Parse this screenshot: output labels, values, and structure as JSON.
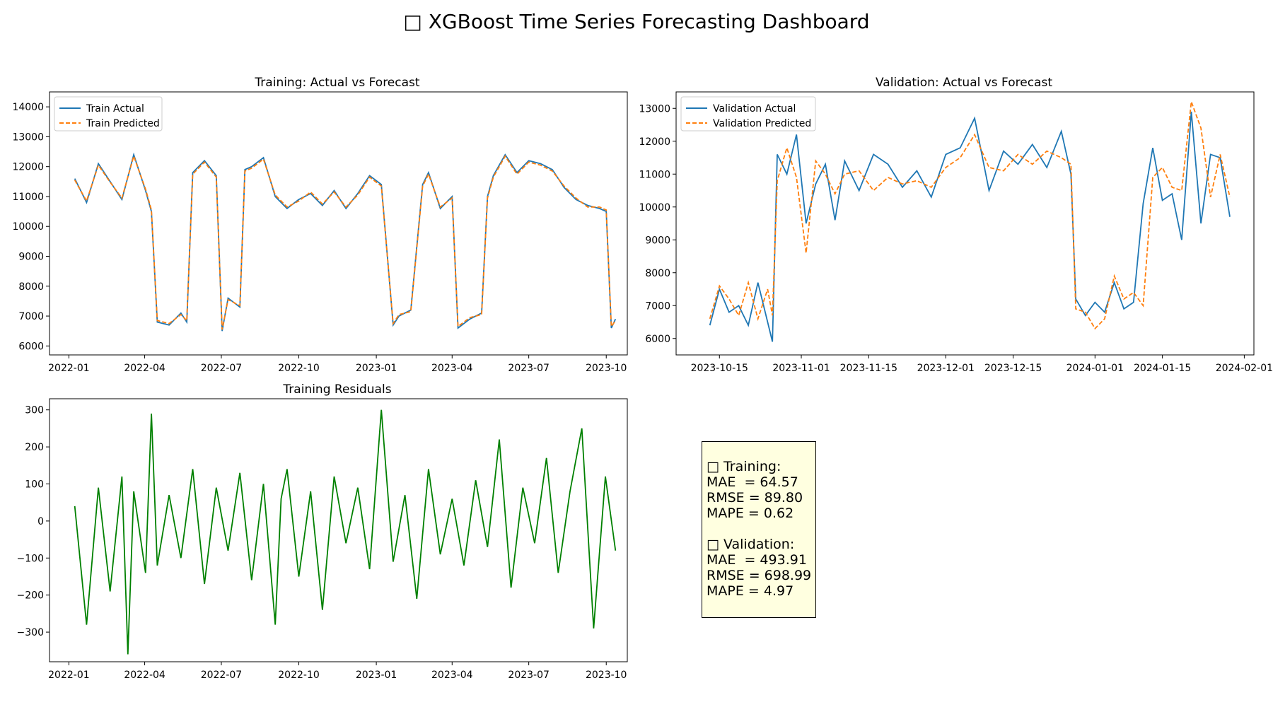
{
  "dashboard": {
    "title": "□ XGBoost Time Series Forecasting Dashboard"
  },
  "metrics": {
    "training_header": "□ Training:",
    "training_mae": "MAE  = 64.57",
    "training_rmse": "RMSE = 89.80",
    "training_mape": "MAPE = 0.62",
    "validation_header": "□ Validation:",
    "validation_mae": "MAE  = 493.91",
    "validation_rmse": "RMSE = 698.99",
    "validation_mape": "MAPE = 4.97"
  },
  "colors": {
    "actual": "#1f77b4",
    "predicted": "#ff7f0e",
    "residual": "#008000",
    "metrics_bg": "#ffffe0"
  },
  "chart_data": [
    {
      "id": "training",
      "type": "line",
      "title": "Training: Actual vs Forecast",
      "legend_position": "top-left",
      "x_type": "date",
      "xlim": [
        "2021-12-09",
        "2023-10-26"
      ],
      "ylim": [
        5700,
        14500
      ],
      "x_ticks": [
        "2022-01",
        "2022-04",
        "2022-07",
        "2022-10",
        "2023-01",
        "2023-04",
        "2023-07",
        "2023-10"
      ],
      "x_tick_dates": [
        "2022-01-01",
        "2022-04-01",
        "2022-07-01",
        "2022-10-01",
        "2023-01-01",
        "2023-04-01",
        "2023-07-01",
        "2023-10-01"
      ],
      "y_ticks": [
        6000,
        7000,
        8000,
        9000,
        10000,
        11000,
        12000,
        13000,
        14000
      ],
      "series": [
        {
          "name": "Train Actual",
          "style": "solid",
          "x": [
            "2022-01-08",
            "2022-01-22",
            "2022-02-05",
            "2022-02-19",
            "2022-03-05",
            "2022-03-19",
            "2022-04-02",
            "2022-04-09",
            "2022-04-16",
            "2022-04-30",
            "2022-05-14",
            "2022-05-21",
            "2022-05-28",
            "2022-06-11",
            "2022-06-25",
            "2022-07-02",
            "2022-07-09",
            "2022-07-23",
            "2022-07-29",
            "2022-08-06",
            "2022-08-20",
            "2022-09-03",
            "2022-09-17",
            "2022-10-01",
            "2022-10-15",
            "2022-10-29",
            "2022-11-12",
            "2022-11-26",
            "2022-12-10",
            "2022-12-24",
            "2023-01-07",
            "2023-01-21",
            "2023-01-28",
            "2023-02-11",
            "2023-02-25",
            "2023-03-04",
            "2023-03-18",
            "2023-04-01",
            "2023-04-08",
            "2023-04-22",
            "2023-05-06",
            "2023-05-13",
            "2023-05-20",
            "2023-06-03",
            "2023-06-17",
            "2023-07-01",
            "2023-07-15",
            "2023-07-29",
            "2023-08-12",
            "2023-08-26",
            "2023-09-09",
            "2023-09-23",
            "2023-10-01",
            "2023-10-07",
            "2023-10-12"
          ],
          "y": [
            11600,
            10800,
            12100,
            11500,
            10900,
            12400,
            11200,
            10500,
            6800,
            6700,
            7100,
            6800,
            11800,
            12200,
            11700,
            6500,
            7600,
            7300,
            11900,
            12000,
            12300,
            11000,
            10600,
            10900,
            11100,
            10700,
            11200,
            10600,
            11100,
            11700,
            11400,
            6700,
            7000,
            7200,
            11400,
            11800,
            10600,
            11000,
            6600,
            6900,
            7100,
            11000,
            11700,
            12400,
            11800,
            12200,
            12100,
            11900,
            11300,
            10900,
            10700,
            10600,
            10500,
            6600,
            6900
          ]
        },
        {
          "name": "Train Predicted",
          "style": "dashed",
          "x": [
            "2022-01-08",
            "2022-01-22",
            "2022-02-05",
            "2022-02-19",
            "2022-03-05",
            "2022-03-19",
            "2022-04-02",
            "2022-04-09",
            "2022-04-16",
            "2022-04-30",
            "2022-05-14",
            "2022-05-21",
            "2022-05-28",
            "2022-06-11",
            "2022-06-25",
            "2022-07-02",
            "2022-07-09",
            "2022-07-23",
            "2022-07-29",
            "2022-08-06",
            "2022-08-20",
            "2022-09-03",
            "2022-09-17",
            "2022-10-01",
            "2022-10-15",
            "2022-10-29",
            "2022-11-12",
            "2022-11-26",
            "2022-12-10",
            "2022-12-24",
            "2023-01-07",
            "2023-01-21",
            "2023-01-28",
            "2023-02-11",
            "2023-02-25",
            "2023-03-04",
            "2023-03-18",
            "2023-04-01",
            "2023-04-08",
            "2023-04-22",
            "2023-05-06",
            "2023-05-13",
            "2023-05-20",
            "2023-06-03",
            "2023-06-17",
            "2023-07-01",
            "2023-07-15",
            "2023-07-29",
            "2023-08-12",
            "2023-08-26",
            "2023-09-09",
            "2023-09-23",
            "2023-10-01",
            "2023-10-07",
            "2023-10-12"
          ],
          "y": [
            11550,
            10850,
            12050,
            11480,
            10950,
            12350,
            11250,
            10550,
            6850,
            6750,
            7050,
            6850,
            11750,
            12150,
            11650,
            6550,
            7550,
            7350,
            11850,
            11950,
            12250,
            11050,
            10650,
            10850,
            11150,
            10750,
            11150,
            10650,
            11050,
            11650,
            11350,
            6750,
            7050,
            7150,
            11350,
            11750,
            10650,
            10950,
            6650,
            6950,
            7050,
            10950,
            11650,
            12350,
            11750,
            12150,
            12050,
            11850,
            11350,
            10950,
            10650,
            10650,
            10550,
            6650,
            6850
          ]
        }
      ]
    },
    {
      "id": "validation",
      "type": "line",
      "title": "Validation: Actual vs Forecast",
      "legend_position": "top-left",
      "x_type": "date",
      "xlim": [
        "2023-10-06",
        "2024-02-03"
      ],
      "ylim": [
        5500,
        13500
      ],
      "x_ticks": [
        "2023-10-15",
        "2023-11-01",
        "2023-11-15",
        "2023-12-01",
        "2023-12-15",
        "2024-01-01",
        "2024-01-15",
        "2024-02-01"
      ],
      "x_tick_dates": [
        "2023-10-15",
        "2023-11-01",
        "2023-11-15",
        "2023-12-01",
        "2023-12-15",
        "2024-01-01",
        "2024-01-15",
        "2024-02-01"
      ],
      "y_ticks": [
        6000,
        7000,
        8000,
        9000,
        10000,
        11000,
        12000,
        13000
      ],
      "series": [
        {
          "name": "Validation Actual",
          "style": "solid",
          "x": [
            "2023-10-13",
            "2023-10-15",
            "2023-10-17",
            "2023-10-19",
            "2023-10-21",
            "2023-10-23",
            "2023-10-25",
            "2023-10-26",
            "2023-10-27",
            "2023-10-29",
            "2023-10-31",
            "2023-11-02",
            "2023-11-04",
            "2023-11-06",
            "2023-11-08",
            "2023-11-10",
            "2023-11-13",
            "2023-11-16",
            "2023-11-19",
            "2023-11-22",
            "2023-11-25",
            "2023-11-28",
            "2023-12-01",
            "2023-12-04",
            "2023-12-07",
            "2023-12-10",
            "2023-12-13",
            "2023-12-16",
            "2023-12-19",
            "2023-12-22",
            "2023-12-25",
            "2023-12-27",
            "2023-12-28",
            "2023-12-30",
            "2024-01-01",
            "2024-01-03",
            "2024-01-05",
            "2024-01-07",
            "2024-01-09",
            "2024-01-11",
            "2024-01-13",
            "2024-01-15",
            "2024-01-17",
            "2024-01-19",
            "2024-01-21",
            "2024-01-23",
            "2024-01-25",
            "2024-01-27",
            "2024-01-29"
          ],
          "y": [
            6400,
            7500,
            6800,
            7000,
            6400,
            7700,
            6500,
            5900,
            11600,
            11000,
            12200,
            9500,
            10700,
            11300,
            9600,
            11400,
            10500,
            11600,
            11300,
            10600,
            11100,
            10300,
            11600,
            11800,
            12700,
            10500,
            11700,
            11300,
            11900,
            11200,
            12300,
            11000,
            7200,
            6700,
            7100,
            6800,
            7700,
            6900,
            7100,
            10100,
            11800,
            10200,
            10400,
            9000,
            12900,
            9500,
            11600,
            11500,
            9700
          ]
        },
        {
          "name": "Validation Predicted",
          "style": "dashed",
          "x": [
            "2023-10-13",
            "2023-10-15",
            "2023-10-17",
            "2023-10-19",
            "2023-10-21",
            "2023-10-23",
            "2023-10-25",
            "2023-10-26",
            "2023-10-27",
            "2023-10-29",
            "2023-10-31",
            "2023-11-02",
            "2023-11-04",
            "2023-11-06",
            "2023-11-08",
            "2023-11-10",
            "2023-11-13",
            "2023-11-16",
            "2023-11-19",
            "2023-11-22",
            "2023-11-25",
            "2023-11-28",
            "2023-12-01",
            "2023-12-04",
            "2023-12-07",
            "2023-12-10",
            "2023-12-13",
            "2023-12-16",
            "2023-12-19",
            "2023-12-22",
            "2023-12-25",
            "2023-12-27",
            "2023-12-28",
            "2023-12-30",
            "2024-01-01",
            "2024-01-03",
            "2024-01-05",
            "2024-01-07",
            "2024-01-09",
            "2024-01-11",
            "2024-01-13",
            "2024-01-15",
            "2024-01-17",
            "2024-01-19",
            "2024-01-21",
            "2024-01-23",
            "2024-01-25",
            "2024-01-27",
            "2024-01-29"
          ],
          "y": [
            6600,
            7600,
            7200,
            6700,
            7700,
            6600,
            7500,
            6700,
            10800,
            11800,
            10900,
            8600,
            11400,
            11000,
            10400,
            11000,
            11100,
            10500,
            10900,
            10700,
            10800,
            10600,
            11200,
            11500,
            12200,
            11200,
            11100,
            11600,
            11300,
            11700,
            11500,
            11300,
            6900,
            6800,
            6300,
            6600,
            7900,
            7200,
            7400,
            7000,
            10900,
            11200,
            10600,
            10500,
            13200,
            12400,
            10300,
            11600,
            10300
          ]
        }
      ]
    },
    {
      "id": "residuals",
      "type": "line",
      "title": "Training Residuals",
      "x_type": "date",
      "xlim": [
        "2021-12-09",
        "2023-10-26"
      ],
      "ylim": [
        -380,
        330
      ],
      "x_ticks": [
        "2022-01",
        "2022-04",
        "2022-07",
        "2022-10",
        "2023-01",
        "2023-04",
        "2023-07",
        "2023-10"
      ],
      "x_tick_dates": [
        "2022-01-01",
        "2022-04-01",
        "2022-07-01",
        "2022-10-01",
        "2023-01-01",
        "2023-04-01",
        "2023-07-01",
        "2023-10-01"
      ],
      "y_ticks": [
        -300,
        -200,
        -100,
        0,
        100,
        200,
        300
      ],
      "series": [
        {
          "name": "",
          "style": "solid",
          "x": [
            "2022-01-08",
            "2022-01-22",
            "2022-02-05",
            "2022-02-19",
            "2022-03-05",
            "2022-03-12",
            "2022-03-19",
            "2022-04-02",
            "2022-04-09",
            "2022-04-16",
            "2022-04-30",
            "2022-05-14",
            "2022-05-28",
            "2022-06-11",
            "2022-06-25",
            "2022-07-09",
            "2022-07-23",
            "2022-08-06",
            "2022-08-20",
            "2022-09-03",
            "2022-09-10",
            "2022-09-17",
            "2022-10-01",
            "2022-10-15",
            "2022-10-29",
            "2022-11-12",
            "2022-11-26",
            "2022-12-10",
            "2022-12-24",
            "2023-01-07",
            "2023-01-21",
            "2023-02-04",
            "2023-02-18",
            "2023-03-04",
            "2023-03-18",
            "2023-04-01",
            "2023-04-15",
            "2023-04-29",
            "2023-05-13",
            "2023-05-27",
            "2023-06-10",
            "2023-06-24",
            "2023-07-08",
            "2023-07-22",
            "2023-08-05",
            "2023-08-19",
            "2023-09-02",
            "2023-09-16",
            "2023-09-30",
            "2023-10-12"
          ],
          "y": [
            40,
            -280,
            90,
            -190,
            120,
            -360,
            80,
            -140,
            290,
            -120,
            70,
            -100,
            140,
            -170,
            90,
            -80,
            130,
            -160,
            100,
            -280,
            60,
            140,
            -150,
            80,
            -240,
            120,
            -60,
            90,
            -130,
            300,
            -110,
            70,
            -210,
            140,
            -90,
            60,
            -120,
            110,
            -70,
            220,
            -180,
            90,
            -60,
            170,
            -140,
            80,
            250,
            -290,
            120,
            -80
          ]
        }
      ]
    }
  ]
}
